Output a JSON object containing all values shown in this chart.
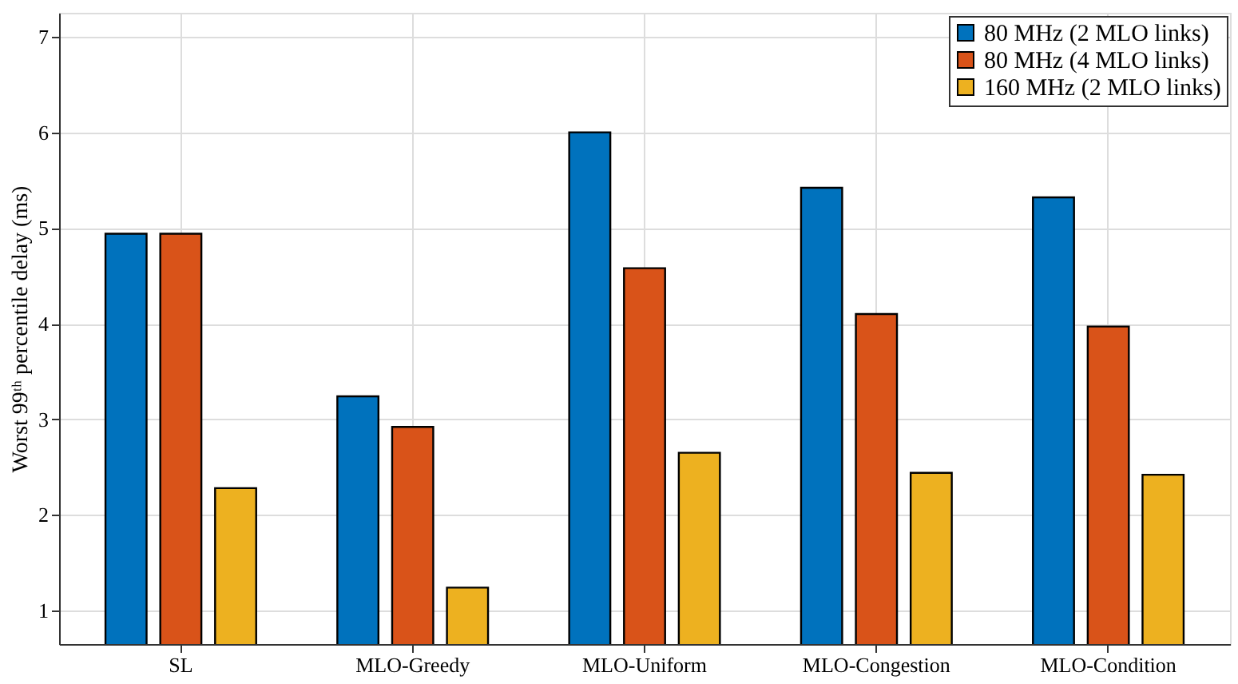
{
  "chart_data": {
    "type": "bar",
    "ylabel": "Worst 99ᵗʰ percentile delay (ms)",
    "categories": [
      "SL",
      "MLO-Greedy",
      "MLO-Uniform",
      "MLO-Congestion",
      "MLO-Condition"
    ],
    "series": [
      {
        "name": "80 MHz (2 MLO links)",
        "color": "#0072bd",
        "values": [
          4.94,
          3.24,
          6.0,
          5.42,
          5.32
        ]
      },
      {
        "name": "80 MHz (4 MLO links)",
        "color": "#d95319",
        "values": [
          4.94,
          2.92,
          4.58,
          4.1,
          3.97
        ]
      },
      {
        "name": "160 MHz (2 MLO links)",
        "color": "#edb120",
        "values": [
          2.28,
          1.24,
          2.65,
          2.44,
          2.42
        ]
      }
    ],
    "ylim": [
      0.65,
      7.25
    ],
    "yticks": [
      1,
      2,
      3,
      4,
      5,
      6,
      7
    ],
    "grid": true,
    "legend": "top right"
  }
}
